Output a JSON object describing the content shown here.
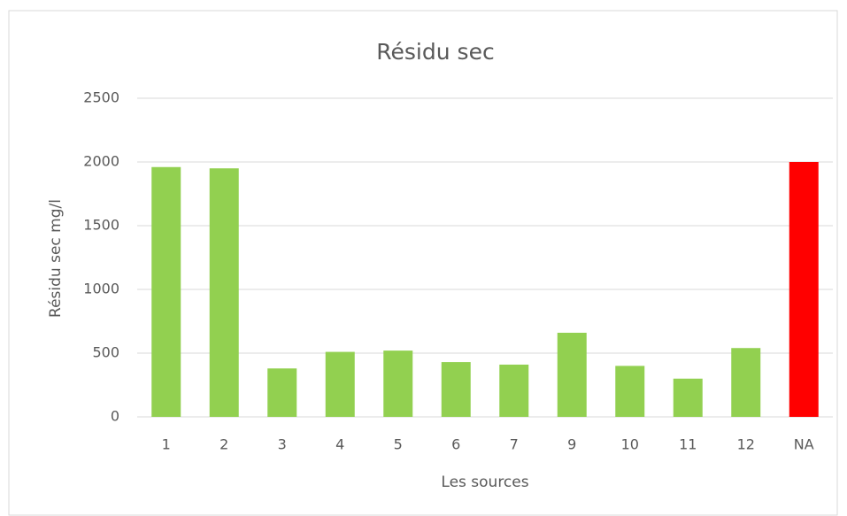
{
  "chart_data": {
    "type": "bar",
    "title": "Résidu sec",
    "x_label": "Les sources",
    "y_label": "Résidu sec mg/l",
    "categories": [
      "1",
      "2",
      "3",
      "4",
      "5",
      "6",
      "7",
      "9",
      "10",
      "11",
      "12",
      "NA"
    ],
    "values": [
      1960,
      1950,
      380,
      510,
      520,
      430,
      410,
      660,
      400,
      300,
      540,
      2000
    ],
    "colors": [
      "#92d050",
      "#92d050",
      "#92d050",
      "#92d050",
      "#92d050",
      "#92d050",
      "#92d050",
      "#92d050",
      "#92d050",
      "#92d050",
      "#92d050",
      "#ff0000"
    ],
    "ylim": [
      0,
      2500
    ],
    "yticks": [
      0,
      500,
      1000,
      1500,
      2000,
      2500
    ],
    "grid": true
  }
}
